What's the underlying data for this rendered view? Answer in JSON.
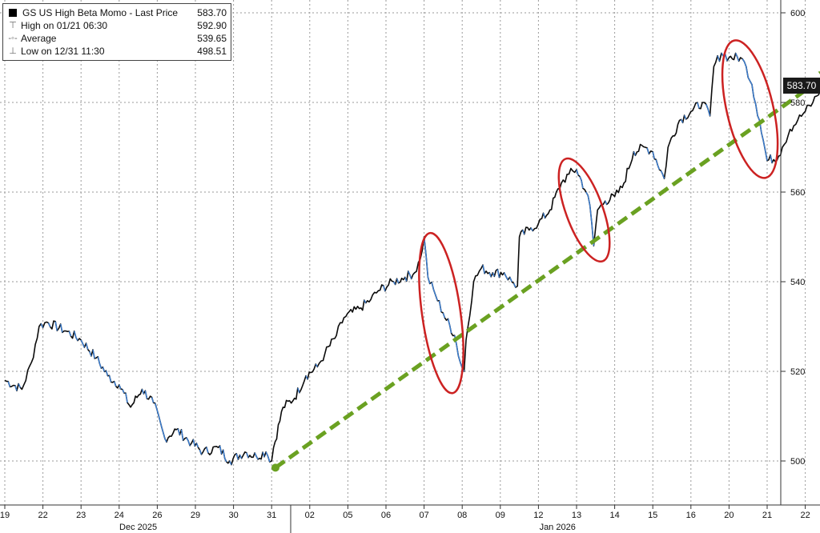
{
  "chart_data": {
    "type": "line",
    "title": "GS US High Beta Momo",
    "series": [
      {
        "name": "GS US High Beta Momo - Last Price",
        "x": [
          "12/19",
          "12/22",
          "12/23",
          "12/24",
          "12/26",
          "12/29",
          "12/30",
          "12/31",
          "01/02",
          "01/05",
          "01/06",
          "01/07",
          "01/08",
          "01/09",
          "01/12",
          "01/13",
          "01/14",
          "01/15",
          "01/16",
          "01/20",
          "01/21",
          "01/22"
        ],
        "points": [
          [
            0,
            518
          ],
          [
            0.45,
            516
          ],
          [
            0.7,
            522
          ],
          [
            0.9,
            530
          ],
          [
            1.1,
            531
          ],
          [
            1.6,
            529
          ],
          [
            2.0,
            527
          ],
          [
            2.4,
            523
          ],
          [
            2.7,
            519
          ],
          [
            3.0,
            517
          ],
          [
            3.3,
            512
          ],
          [
            3.6,
            516
          ],
          [
            3.9,
            513
          ],
          [
            4.2,
            505
          ],
          [
            4.5,
            507
          ],
          [
            4.9,
            504
          ],
          [
            5.2,
            502
          ],
          [
            5.6,
            503
          ],
          [
            5.9,
            500
          ],
          [
            6.3,
            502
          ],
          [
            6.6,
            501
          ],
          [
            6.85,
            502
          ],
          [
            7.0,
            500
          ],
          [
            7.05,
            503
          ],
          [
            7.3,
            512
          ],
          [
            7.6,
            514
          ],
          [
            7.9,
            519
          ],
          [
            8.2,
            521
          ],
          [
            8.4,
            524
          ],
          [
            8.7,
            528
          ],
          [
            8.9,
            532
          ],
          [
            9.3,
            534
          ],
          [
            9.6,
            536
          ],
          [
            9.8,
            538
          ],
          [
            10.2,
            540
          ],
          [
            10.5,
            541
          ],
          [
            10.75,
            542
          ],
          [
            10.9,
            545
          ],
          [
            11.0,
            550
          ],
          [
            11.1,
            541
          ],
          [
            11.3,
            537
          ],
          [
            11.5,
            533
          ],
          [
            11.8,
            528
          ],
          [
            11.95,
            522
          ],
          [
            12.05,
            520
          ],
          [
            12.1,
            527
          ],
          [
            12.3,
            540
          ],
          [
            12.5,
            543
          ],
          [
            12.8,
            542
          ],
          [
            13.1,
            542
          ],
          [
            13.3,
            540
          ],
          [
            13.45,
            539
          ],
          [
            13.5,
            550
          ],
          [
            13.8,
            552
          ],
          [
            14.0,
            553
          ],
          [
            14.3,
            556
          ],
          [
            14.6,
            562
          ],
          [
            14.8,
            564
          ],
          [
            15.0,
            565
          ],
          [
            15.25,
            560
          ],
          [
            15.35,
            557
          ],
          [
            15.45,
            548
          ],
          [
            15.55,
            556
          ],
          [
            15.75,
            558
          ],
          [
            16.0,
            559
          ],
          [
            16.2,
            561
          ],
          [
            16.5,
            569
          ],
          [
            16.8,
            570
          ],
          [
            17.0,
            569
          ],
          [
            17.3,
            563
          ],
          [
            17.4,
            570
          ],
          [
            17.7,
            576
          ],
          [
            18.0,
            578
          ],
          [
            18.3,
            580
          ],
          [
            18.5,
            577
          ],
          [
            18.6,
            588
          ],
          [
            18.8,
            591
          ],
          [
            19.0,
            590
          ],
          [
            19.3,
            590
          ],
          [
            19.45,
            588
          ],
          [
            19.6,
            584
          ],
          [
            19.8,
            576
          ],
          [
            20.0,
            567
          ],
          [
            20.3,
            568
          ],
          [
            20.4,
            570
          ],
          [
            20.6,
            574
          ],
          [
            20.8,
            576
          ],
          [
            21.0,
            578
          ],
          [
            21.2,
            580
          ],
          [
            21.4,
            583
          ],
          [
            21.6,
            584
          ],
          [
            21.7,
            583.7
          ]
        ]
      }
    ],
    "y_ticks": [
      500,
      520,
      540,
      560,
      580,
      600
    ],
    "x_ticks": [
      "19",
      "22",
      "23",
      "24",
      "26",
      "29",
      "30",
      "31",
      "02",
      "05",
      "06",
      "07",
      "08",
      "09",
      "12",
      "13",
      "14",
      "15",
      "16",
      "20",
      "21",
      "22"
    ],
    "x_group_labels": [
      {
        "label": "Dec 2025",
        "from": 0,
        "to": 7
      },
      {
        "label": "Jan 2026",
        "from": 8,
        "to": 21
      }
    ],
    "ylim": [
      490,
      604
    ],
    "grid": true,
    "legend_position": "top-left",
    "y_axis_side": "right",
    "annotations": {
      "trend_arrow": {
        "from": [
          7.1,
          498.5
        ],
        "to": [
          21.8,
          587.5
        ],
        "color": "#6aa121",
        "style": "dashed"
      },
      "ellipses": [
        {
          "x": 11.45,
          "y": 533,
          "color": "#cc2222"
        },
        {
          "x": 15.2,
          "y": 556,
          "color": "#cc2222"
        },
        {
          "x": 19.55,
          "y": 578.5,
          "color": "#cc2222"
        }
      ]
    },
    "last_price_label": "583.70"
  },
  "legend": {
    "rows": [
      {
        "label": "GS US High Beta Momo - Last Price",
        "value": "583.70",
        "mark": "■"
      },
      {
        "label": "High on 01/21 06:30",
        "value": "592.90",
        "mark": "⊤"
      },
      {
        "label": "Average",
        "value": "539.65",
        "mark": "-◦-"
      },
      {
        "label": "Low on 12/31 11:30",
        "value": "498.51",
        "mark": "⊥"
      }
    ]
  },
  "colors": {
    "line": "#0b0b0b",
    "line_down": "#3b7fd4",
    "grid": "#9a9a9a",
    "axis": "#333333",
    "label_bg": "#1a1a1a"
  }
}
